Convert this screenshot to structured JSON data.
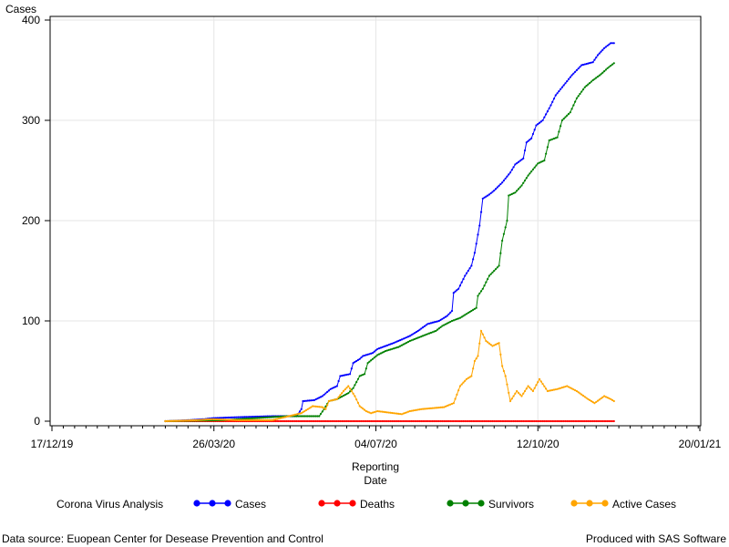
{
  "footnote_left": "Data source: Euopean Center for Desease Prevention and Control",
  "footnote_right": "Produced with SAS Software",
  "legend_title": "Corona Virus Analysis",
  "chart_data": {
    "type": "line",
    "title": "",
    "ylabel": "Cases",
    "xlabel_lines": [
      "Reporting",
      "Date"
    ],
    "x_axis": {
      "type": "date",
      "min": "2019-12-17",
      "max": "2021-01-20",
      "ticks": [
        "2019-12-17",
        "2020-03-26",
        "2020-07-04",
        "2020-10-12",
        "2021-01-20"
      ],
      "tick_labels": [
        "17/12/19",
        "26/03/20",
        "04/07/20",
        "12/10/20",
        "20/01/21"
      ]
    },
    "y_axis": {
      "min": 0,
      "max": 400,
      "ticks": [
        0,
        100,
        200,
        300,
        400
      ]
    },
    "grid": true,
    "legend_position": "bottom",
    "series": [
      {
        "name": "Cases",
        "color": "#0000ff",
        "points": [
          [
            "2020-02-25",
            0
          ],
          [
            "2020-03-10",
            1
          ],
          [
            "2020-03-20",
            2
          ],
          [
            "2020-03-25",
            3
          ],
          [
            "2020-04-10",
            4
          ],
          [
            "2020-05-01",
            5
          ],
          [
            "2020-05-16",
            5
          ],
          [
            "2020-05-19",
            12
          ],
          [
            "2020-05-20",
            20
          ],
          [
            "2020-05-27",
            21
          ],
          [
            "2020-06-01",
            25
          ],
          [
            "2020-06-06",
            32
          ],
          [
            "2020-06-10",
            35
          ],
          [
            "2020-06-12",
            45
          ],
          [
            "2020-06-18",
            47
          ],
          [
            "2020-06-20",
            58
          ],
          [
            "2020-06-24",
            62
          ],
          [
            "2020-06-26",
            65
          ],
          [
            "2020-07-02",
            68
          ],
          [
            "2020-07-05",
            72
          ],
          [
            "2020-07-15",
            78
          ],
          [
            "2020-07-25",
            85
          ],
          [
            "2020-07-30",
            90
          ],
          [
            "2020-08-05",
            97
          ],
          [
            "2020-08-12",
            100
          ],
          [
            "2020-08-17",
            105
          ],
          [
            "2020-08-20",
            110
          ],
          [
            "2020-08-21",
            128
          ],
          [
            "2020-08-24",
            132
          ],
          [
            "2020-08-28",
            145
          ],
          [
            "2020-09-01",
            155
          ],
          [
            "2020-09-03",
            168
          ],
          [
            "2020-09-06",
            195
          ],
          [
            "2020-09-08",
            222
          ],
          [
            "2020-09-12",
            226
          ],
          [
            "2020-09-15",
            230
          ],
          [
            "2020-09-20",
            238
          ],
          [
            "2020-09-25",
            248
          ],
          [
            "2020-09-28",
            256
          ],
          [
            "2020-10-03",
            262
          ],
          [
            "2020-10-05",
            278
          ],
          [
            "2020-10-08",
            282
          ],
          [
            "2020-10-11",
            295
          ],
          [
            "2020-10-15",
            300
          ],
          [
            "2020-10-20",
            315
          ],
          [
            "2020-10-23",
            325
          ],
          [
            "2020-10-28",
            335
          ],
          [
            "2020-11-02",
            345
          ],
          [
            "2020-11-08",
            355
          ],
          [
            "2020-11-15",
            358
          ],
          [
            "2020-11-18",
            365
          ],
          [
            "2020-11-22",
            372
          ],
          [
            "2020-11-26",
            377
          ],
          [
            "2020-11-28",
            377
          ]
        ]
      },
      {
        "name": "Deaths",
        "color": "#ff0000",
        "points": [
          [
            "2020-02-25",
            0
          ],
          [
            "2020-11-28",
            0
          ]
        ]
      },
      {
        "name": "Survivors",
        "color": "#008000",
        "points": [
          [
            "2020-02-25",
            0
          ],
          [
            "2020-04-01",
            1
          ],
          [
            "2020-04-20",
            3
          ],
          [
            "2020-05-10",
            5
          ],
          [
            "2020-05-30",
            5
          ],
          [
            "2020-06-02",
            12
          ],
          [
            "2020-06-05",
            20
          ],
          [
            "2020-06-10",
            22
          ],
          [
            "2020-06-17",
            28
          ],
          [
            "2020-06-20",
            33
          ],
          [
            "2020-06-24",
            45
          ],
          [
            "2020-06-27",
            47
          ],
          [
            "2020-06-29",
            58
          ],
          [
            "2020-07-02",
            62
          ],
          [
            "2020-07-05",
            66
          ],
          [
            "2020-07-10",
            70
          ],
          [
            "2020-07-18",
            74
          ],
          [
            "2020-07-25",
            80
          ],
          [
            "2020-08-05",
            87
          ],
          [
            "2020-08-10",
            90
          ],
          [
            "2020-08-14",
            95
          ],
          [
            "2020-08-20",
            100
          ],
          [
            "2020-08-25",
            103
          ],
          [
            "2020-09-01",
            110
          ],
          [
            "2020-09-04",
            113
          ],
          [
            "2020-09-05",
            125
          ],
          [
            "2020-09-08",
            132
          ],
          [
            "2020-09-12",
            145
          ],
          [
            "2020-09-18",
            155
          ],
          [
            "2020-09-20",
            180
          ],
          [
            "2020-09-23",
            200
          ],
          [
            "2020-09-24",
            225
          ],
          [
            "2020-09-28",
            228
          ],
          [
            "2020-10-02",
            235
          ],
          [
            "2020-10-06",
            245
          ],
          [
            "2020-10-12",
            257
          ],
          [
            "2020-10-16",
            260
          ],
          [
            "2020-10-19",
            280
          ],
          [
            "2020-10-24",
            283
          ],
          [
            "2020-10-27",
            300
          ],
          [
            "2020-11-01",
            308
          ],
          [
            "2020-11-05",
            322
          ],
          [
            "2020-11-10",
            333
          ],
          [
            "2020-11-15",
            340
          ],
          [
            "2020-11-20",
            346
          ],
          [
            "2020-11-24",
            352
          ],
          [
            "2020-11-28",
            357
          ]
        ]
      },
      {
        "name": "Active Cases",
        "color": "#ffa500",
        "points": [
          [
            "2020-02-25",
            0
          ],
          [
            "2020-03-15",
            1
          ],
          [
            "2020-03-25",
            2
          ],
          [
            "2020-04-10",
            1
          ],
          [
            "2020-05-01",
            1
          ],
          [
            "2020-05-19",
            8
          ],
          [
            "2020-05-26",
            15
          ],
          [
            "2020-06-01",
            14
          ],
          [
            "2020-06-03",
            12
          ],
          [
            "2020-06-05",
            20
          ],
          [
            "2020-06-10",
            22
          ],
          [
            "2020-06-14",
            30
          ],
          [
            "2020-06-17",
            35
          ],
          [
            "2020-06-21",
            25
          ],
          [
            "2020-06-24",
            15
          ],
          [
            "2020-06-28",
            10
          ],
          [
            "2020-07-01",
            8
          ],
          [
            "2020-07-05",
            10
          ],
          [
            "2020-07-10",
            9
          ],
          [
            "2020-07-15",
            8
          ],
          [
            "2020-07-20",
            7
          ],
          [
            "2020-07-25",
            10
          ],
          [
            "2020-08-01",
            12
          ],
          [
            "2020-08-08",
            13
          ],
          [
            "2020-08-15",
            14
          ],
          [
            "2020-08-21",
            18
          ],
          [
            "2020-08-25",
            35
          ],
          [
            "2020-08-29",
            42
          ],
          [
            "2020-09-01",
            45
          ],
          [
            "2020-09-03",
            60
          ],
          [
            "2020-09-05",
            65
          ],
          [
            "2020-09-07",
            90
          ],
          [
            "2020-09-10",
            80
          ],
          [
            "2020-09-14",
            75
          ],
          [
            "2020-09-18",
            78
          ],
          [
            "2020-09-20",
            55
          ],
          [
            "2020-09-22",
            45
          ],
          [
            "2020-09-25",
            20
          ],
          [
            "2020-09-29",
            30
          ],
          [
            "2020-10-02",
            25
          ],
          [
            "2020-10-06",
            35
          ],
          [
            "2020-10-09",
            30
          ],
          [
            "2020-10-13",
            42
          ],
          [
            "2020-10-18",
            30
          ],
          [
            "2020-10-24",
            32
          ],
          [
            "2020-10-30",
            35
          ],
          [
            "2020-11-05",
            30
          ],
          [
            "2020-11-12",
            22
          ],
          [
            "2020-11-16",
            18
          ],
          [
            "2020-11-22",
            25
          ],
          [
            "2020-11-26",
            22
          ],
          [
            "2020-11-28",
            20
          ]
        ]
      }
    ]
  }
}
